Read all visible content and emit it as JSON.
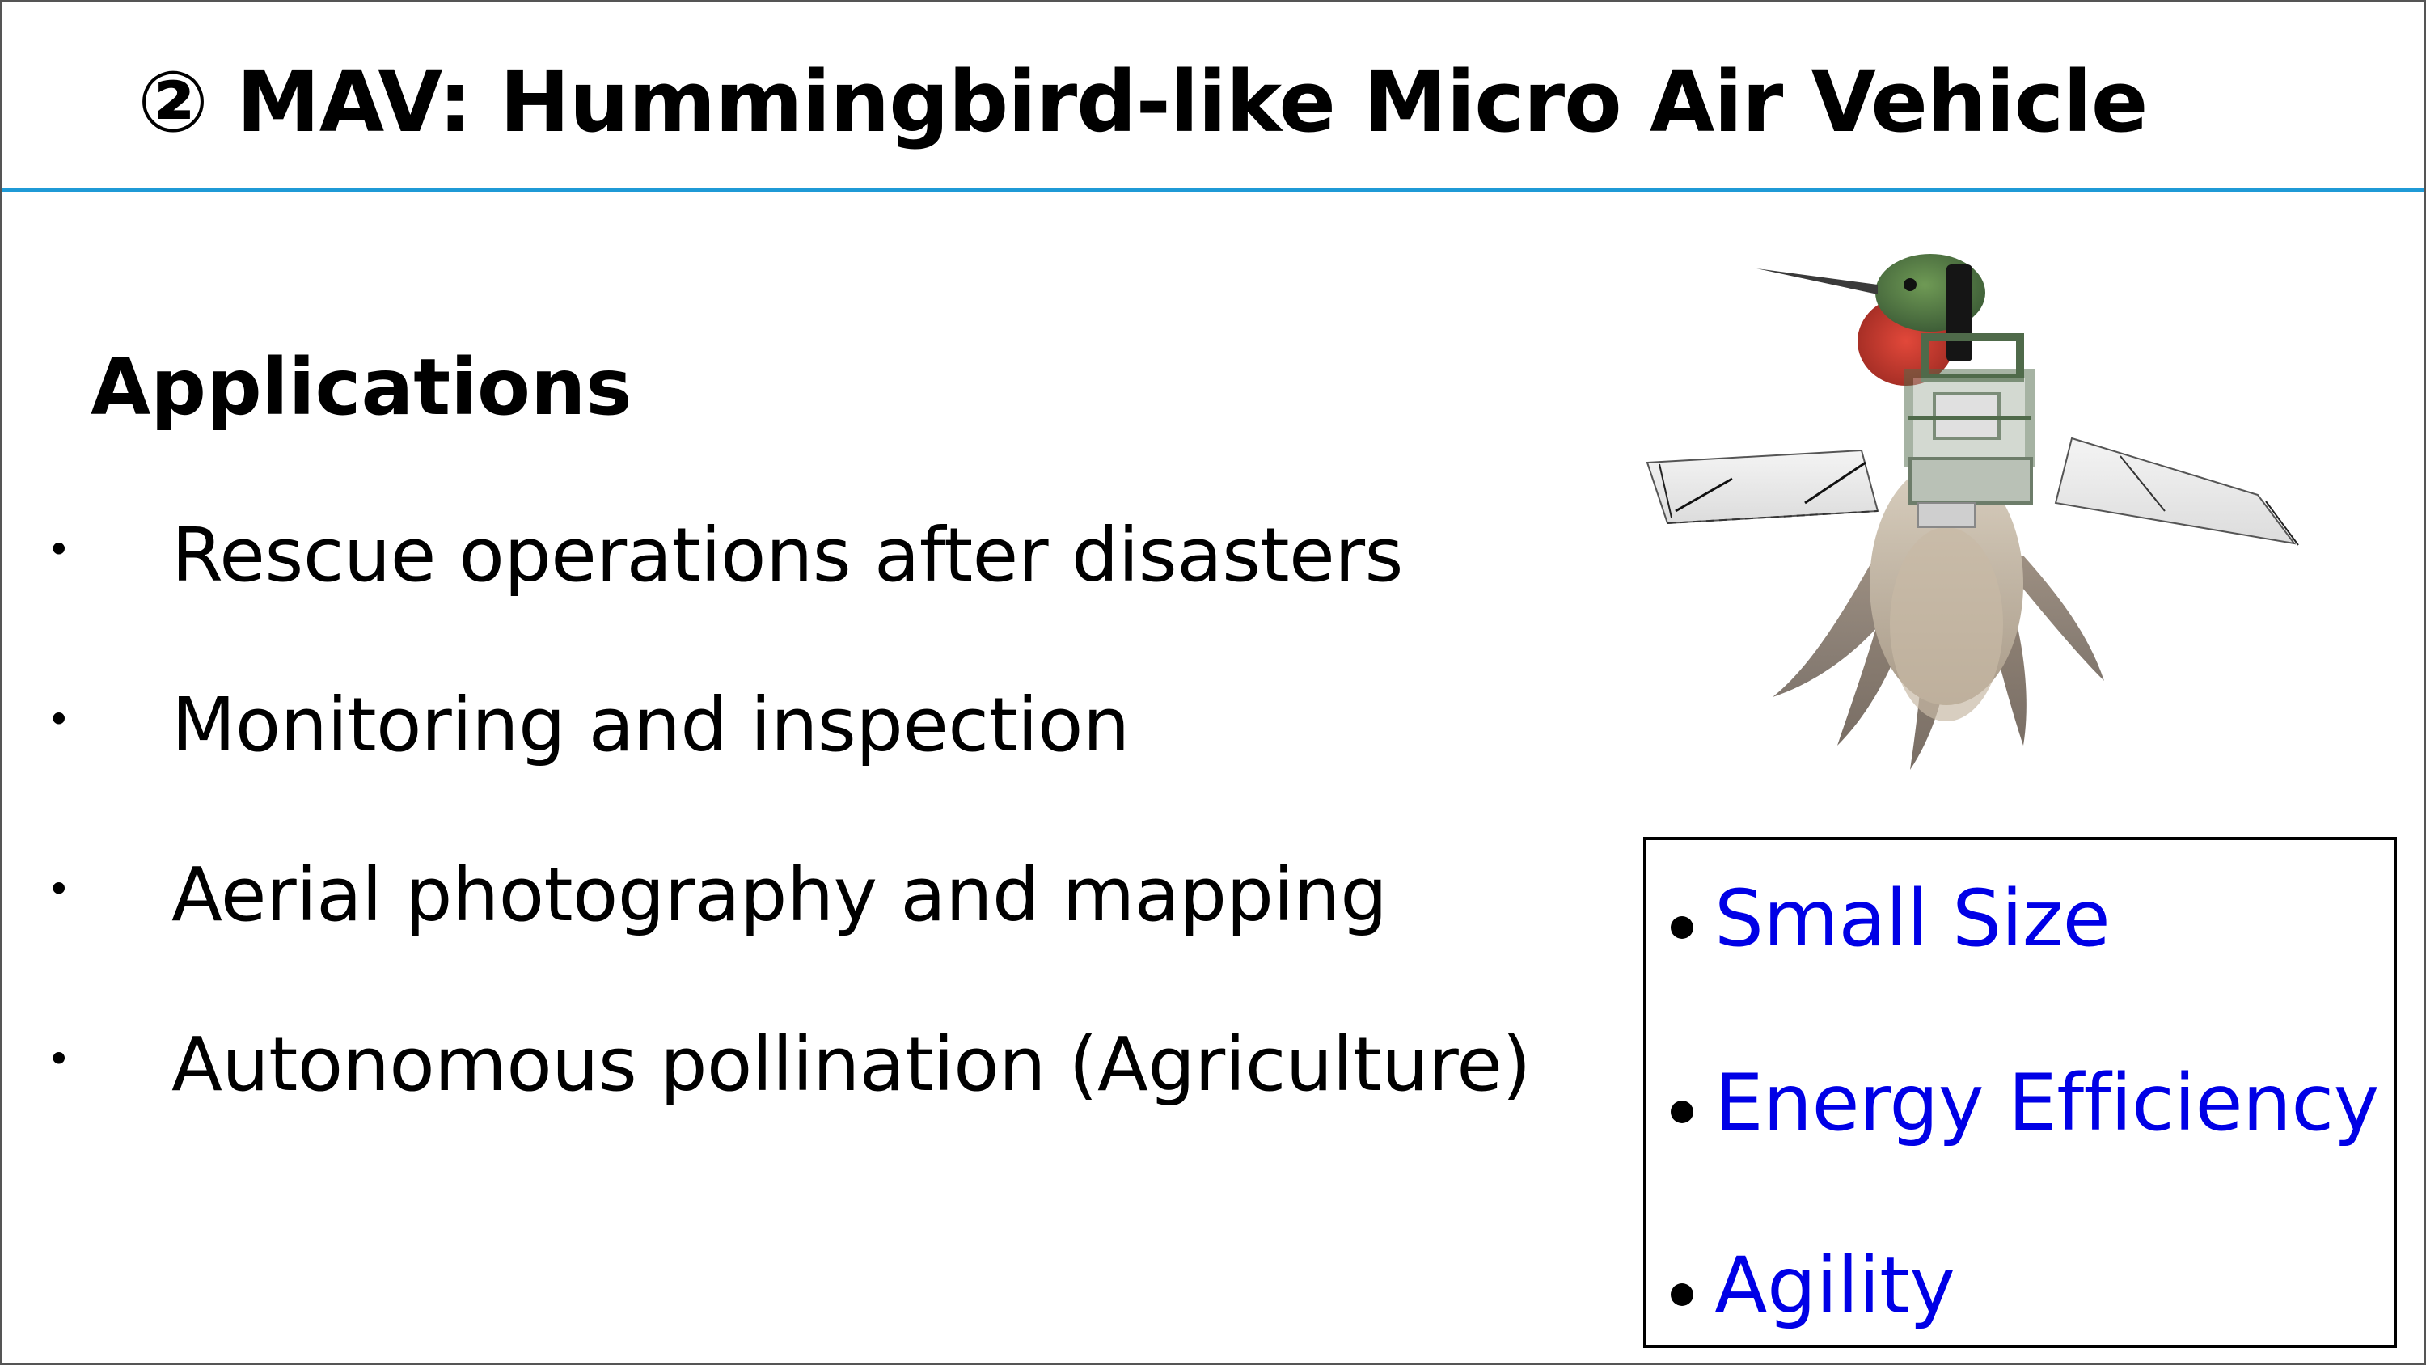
{
  "slide": {
    "title": "② MAV: Hummingbird-like Micro Air Vehicle",
    "section_heading": "Applications",
    "bullet_glyph": "•",
    "applications": [
      "Rescue operations after disasters",
      "Monitoring and inspection",
      "Aerial photography and mapping",
      "Autonomous pollination (Agriculture)"
    ],
    "features": [
      "Small Size",
      "Energy Efficiency",
      "Agility"
    ],
    "colors": {
      "accent_rule": "#1f9ad6",
      "feature_text": "#0000e6"
    },
    "figure": "hummingbird-robot-image"
  }
}
